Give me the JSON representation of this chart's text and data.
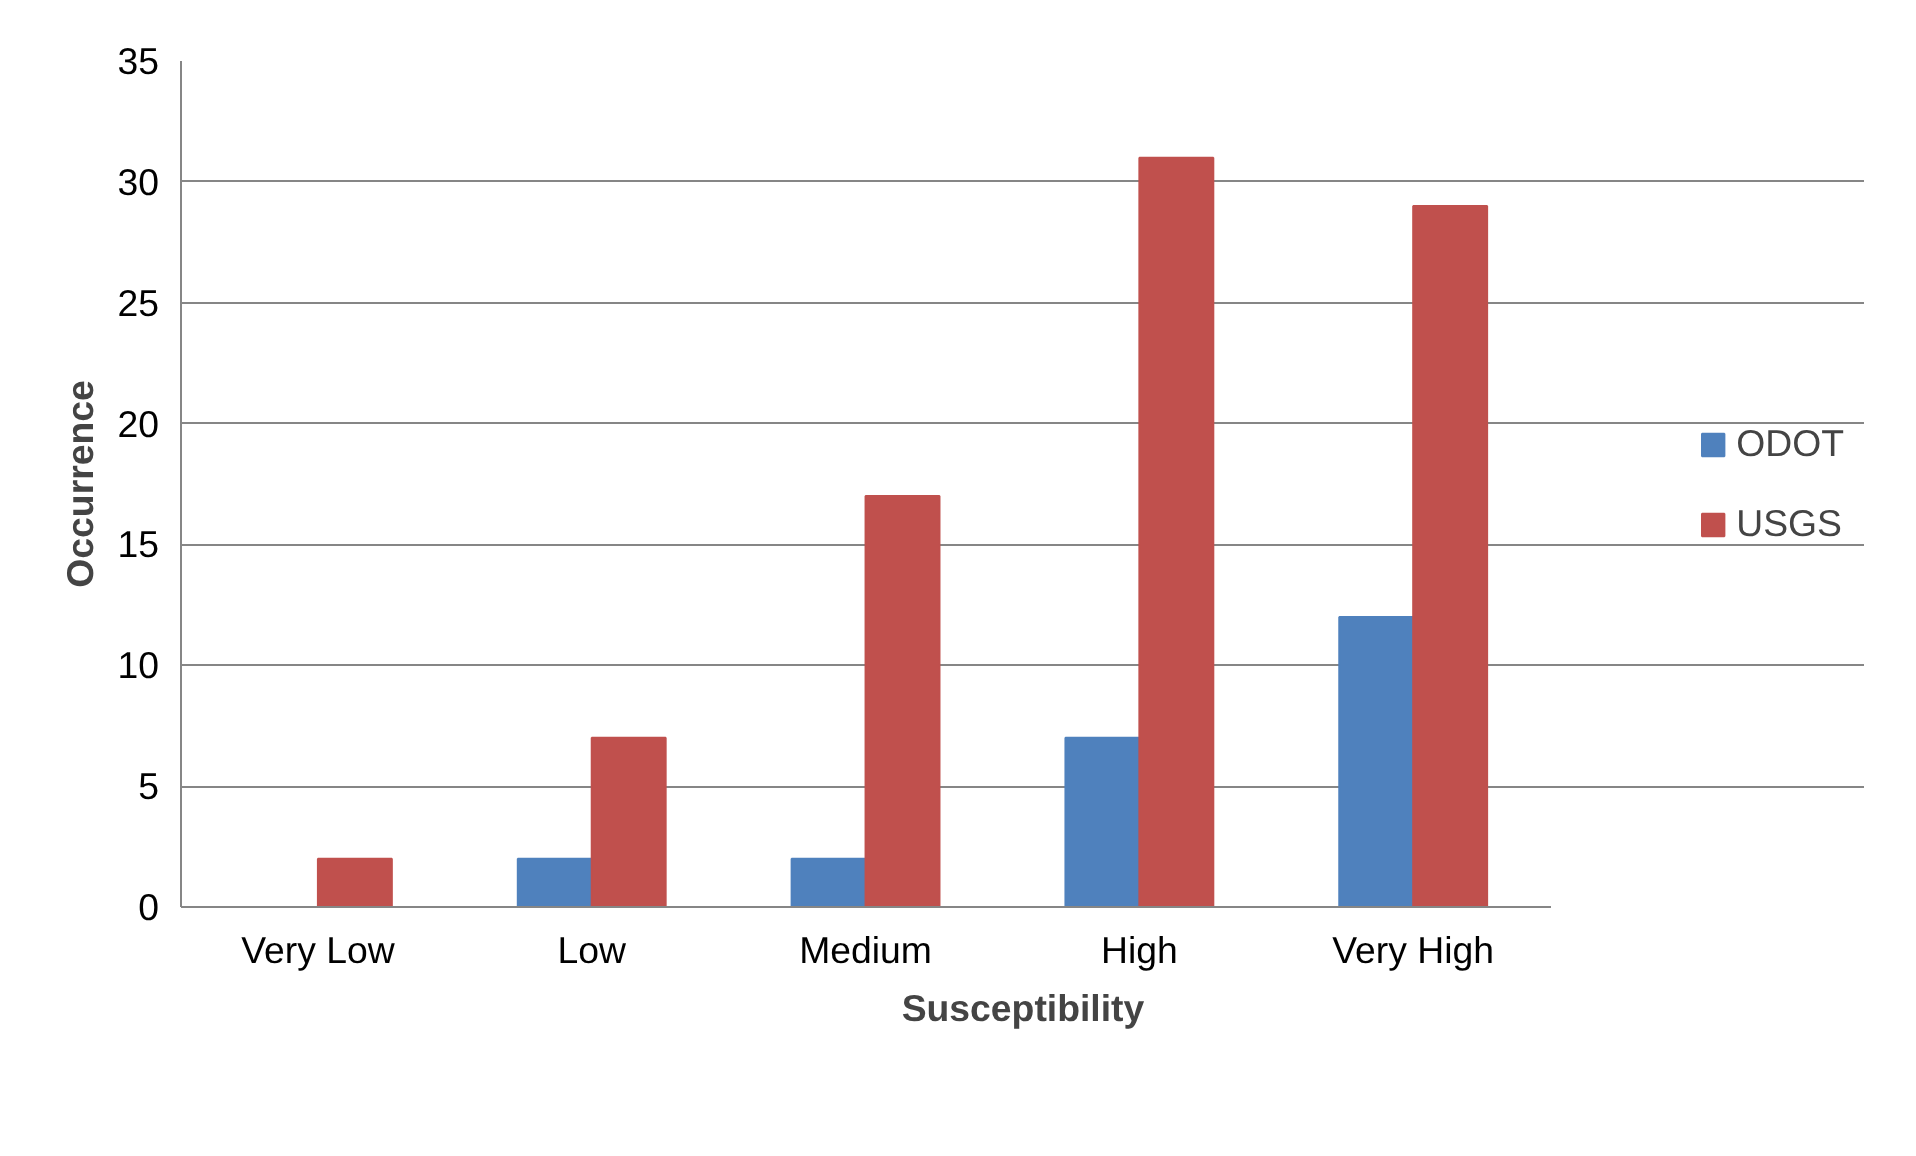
{
  "chart_data": {
    "type": "bar",
    "xlabel": "Susceptibility",
    "ylabel": "Occurrence",
    "categories": [
      "Very Low",
      "Low",
      "Medium",
      "High",
      "Very High"
    ],
    "series": [
      {
        "name": "ODOT",
        "color": "#4f81bd",
        "values": [
          0,
          2,
          2,
          7,
          12
        ]
      },
      {
        "name": "USGS",
        "color": "#c0504d",
        "values": [
          2,
          7,
          17,
          31,
          29
        ]
      }
    ],
    "ylim": [
      0,
      35
    ],
    "yticks": [
      0,
      5,
      10,
      15,
      20,
      25,
      30,
      35
    ],
    "grid": "y",
    "legend": "right"
  }
}
